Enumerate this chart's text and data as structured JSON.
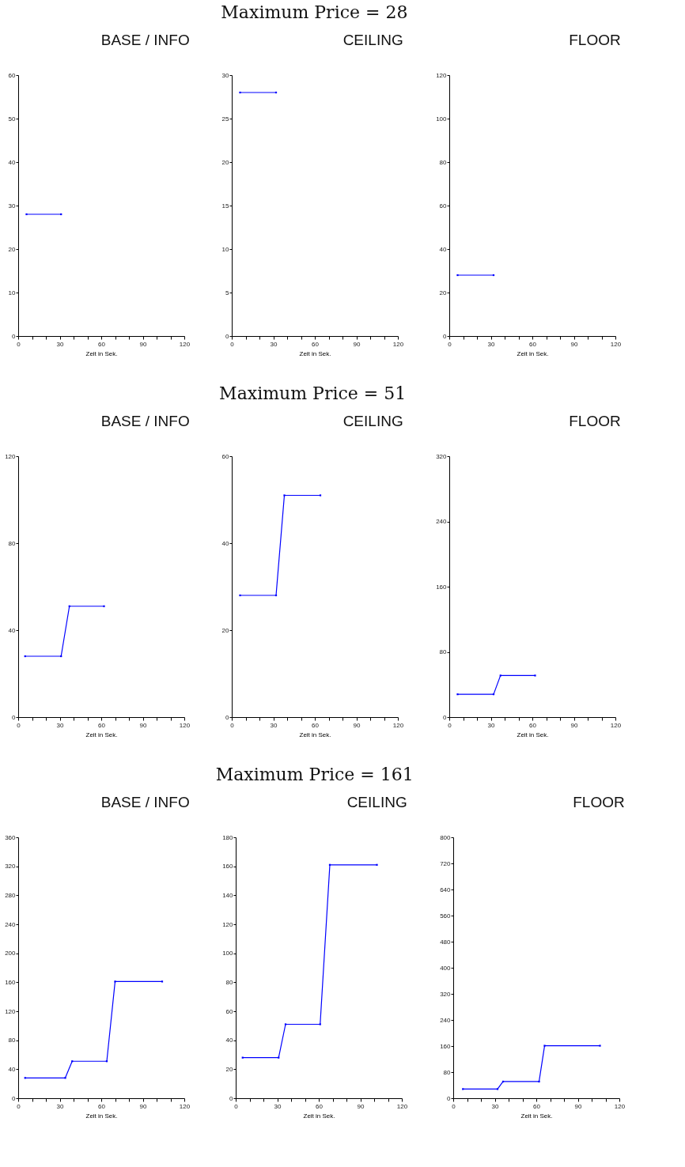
{
  "chart_data": [
    {
      "type": "line",
      "title": "BASE / INFO",
      "annotations": [
        "Maximum Price = 28"
      ],
      "xlabel": "Zeit in Sek.",
      "x": [
        6,
        31
      ],
      "series": [
        {
          "color": "#0000ff",
          "values": [
            28,
            28
          ]
        }
      ],
      "xlim": [
        0,
        120
      ],
      "xticks": [
        0,
        {
          "value": 10,
          "label": null
        },
        {
          "value": 20,
          "label": null
        },
        30,
        {
          "value": 40,
          "label": null
        },
        {
          "value": 50,
          "label": null
        },
        60,
        {
          "value": 70,
          "label": null
        },
        {
          "value": 80,
          "label": null
        },
        90,
        {
          "value": 100,
          "label": null
        },
        {
          "value": 110,
          "label": null
        },
        120
      ],
      "ylim": [
        0,
        60
      ],
      "yticks": [
        0,
        10,
        20,
        30,
        40,
        50,
        60
      ],
      "marker": "square",
      "grid": false
    },
    {
      "type": "line",
      "title": "CEILING",
      "xlabel": "Zeit in Sek.",
      "x": [
        6,
        32
      ],
      "series": [
        {
          "color": "#0000ff",
          "values": [
            28,
            28
          ]
        }
      ],
      "xlim": [
        0,
        120
      ],
      "xticks": [
        0,
        {
          "value": 10,
          "label": null
        },
        {
          "value": 20,
          "label": null
        },
        30,
        {
          "value": 40,
          "label": null
        },
        {
          "value": 50,
          "label": null
        },
        60,
        {
          "value": 70,
          "label": null
        },
        {
          "value": 80,
          "label": null
        },
        90,
        {
          "value": 100,
          "label": null
        },
        {
          "value": 110,
          "label": null
        },
        120
      ],
      "ylim": [
        0,
        30
      ],
      "yticks": [
        0,
        5,
        10,
        15,
        20,
        25,
        30
      ],
      "marker": "square",
      "grid": false
    },
    {
      "type": "line",
      "title": "FLOOR",
      "xlabel": "Zeit in Sek.",
      "x": [
        6,
        32
      ],
      "series": [
        {
          "color": "#0000ff",
          "values": [
            28,
            28
          ]
        }
      ],
      "xlim": [
        0,
        120
      ],
      "xticks": [
        0,
        {
          "value": 10,
          "label": null
        },
        {
          "value": 20,
          "label": null
        },
        30,
        {
          "value": 40,
          "label": null
        },
        {
          "value": 50,
          "label": null
        },
        60,
        {
          "value": 70,
          "label": null
        },
        {
          "value": 80,
          "label": null
        },
        90,
        {
          "value": 100,
          "label": null
        },
        {
          "value": 110,
          "label": null
        },
        120
      ],
      "ylim": [
        0,
        120
      ],
      "yticks": [
        0,
        20,
        40,
        60,
        80,
        100,
        120
      ],
      "marker": "square",
      "grid": false
    },
    {
      "type": "line",
      "title": "BASE / INFO",
      "annotations": [
        "Maximum Price = 51"
      ],
      "xlabel": "Zeit in Sek.",
      "x": [
        5,
        31,
        37,
        62
      ],
      "series": [
        {
          "color": "#0000ff",
          "values": [
            28,
            28,
            51,
            51
          ]
        }
      ],
      "xlim": [
        0,
        120
      ],
      "xticks": [
        0,
        {
          "value": 10,
          "label": null
        },
        {
          "value": 20,
          "label": null
        },
        30,
        {
          "value": 40,
          "label": null
        },
        {
          "value": 50,
          "label": null
        },
        60,
        {
          "value": 70,
          "label": null
        },
        {
          "value": 80,
          "label": null
        },
        90,
        {
          "value": 100,
          "label": null
        },
        {
          "value": 110,
          "label": null
        },
        120
      ],
      "ylim": [
        0,
        120
      ],
      "yticks": [
        0,
        40,
        80,
        120
      ],
      "marker": "square",
      "grid": false
    },
    {
      "type": "line",
      "title": "CEILING",
      "xlabel": "Zeit in Sek.",
      "x": [
        6,
        32,
        38,
        64
      ],
      "series": [
        {
          "color": "#0000ff",
          "values": [
            28,
            28,
            51,
            51
          ]
        }
      ],
      "xlim": [
        0,
        120
      ],
      "xticks": [
        0,
        {
          "value": 10,
          "label": null
        },
        {
          "value": 20,
          "label": null
        },
        30,
        {
          "value": 40,
          "label": null
        },
        {
          "value": 50,
          "label": null
        },
        60,
        {
          "value": 70,
          "label": null
        },
        {
          "value": 80,
          "label": null
        },
        90,
        {
          "value": 100,
          "label": null
        },
        {
          "value": 110,
          "label": null
        },
        120
      ],
      "ylim": [
        0,
        60
      ],
      "yticks": [
        0,
        20,
        40,
        60
      ],
      "marker": "square",
      "grid": false
    },
    {
      "type": "line",
      "title": "FLOOR",
      "xlabel": "Zeit in Sek.",
      "x": [
        6,
        32,
        37,
        62
      ],
      "series": [
        {
          "color": "#0000ff",
          "values": [
            28,
            28,
            51,
            51
          ]
        }
      ],
      "xlim": [
        0,
        120
      ],
      "xticks": [
        0,
        {
          "value": 10,
          "label": null
        },
        {
          "value": 20,
          "label": null
        },
        30,
        {
          "value": 40,
          "label": null
        },
        {
          "value": 50,
          "label": null
        },
        60,
        {
          "value": 70,
          "label": null
        },
        {
          "value": 80,
          "label": null
        },
        90,
        {
          "value": 100,
          "label": null
        },
        {
          "value": 110,
          "label": null
        },
        120
      ],
      "ylim": [
        0,
        320
      ],
      "yticks": [
        0,
        80,
        160,
        240,
        320
      ],
      "marker": "square",
      "grid": false
    },
    {
      "type": "line",
      "title": "BASE / INFO",
      "annotations": [
        "Maximum Price = 161"
      ],
      "xlabel": "Zeit in Sek.",
      "x": [
        5,
        34,
        39,
        64,
        70,
        104
      ],
      "series": [
        {
          "color": "#0000ff",
          "values": [
            28,
            28,
            51,
            51,
            161,
            161
          ]
        }
      ],
      "xlim": [
        0,
        120
      ],
      "xticks": [
        0,
        {
          "value": 10,
          "label": null
        },
        {
          "value": 20,
          "label": null
        },
        30,
        {
          "value": 40,
          "label": null
        },
        {
          "value": 50,
          "label": null
        },
        60,
        {
          "value": 70,
          "label": null
        },
        {
          "value": 80,
          "label": null
        },
        90,
        {
          "value": 100,
          "label": null
        },
        {
          "value": 110,
          "label": null
        },
        120
      ],
      "ylim": [
        0,
        360
      ],
      "yticks": [
        0,
        40,
        80,
        120,
        160,
        200,
        240,
        280,
        320,
        360
      ],
      "marker": "square",
      "grid": false
    },
    {
      "type": "line",
      "title": "CEILING",
      "xlabel": "Zeit in Sek.",
      "x": [
        5,
        31,
        36,
        61,
        68,
        102
      ],
      "series": [
        {
          "color": "#0000ff",
          "values": [
            28,
            28,
            51,
            51,
            161,
            161
          ]
        }
      ],
      "xlim": [
        0,
        120
      ],
      "xticks": [
        0,
        {
          "value": 10,
          "label": null
        },
        {
          "value": 20,
          "label": null
        },
        30,
        {
          "value": 40,
          "label": null
        },
        {
          "value": 50,
          "label": null
        },
        60,
        {
          "value": 70,
          "label": null
        },
        {
          "value": 80,
          "label": null
        },
        90,
        {
          "value": 100,
          "label": null
        },
        {
          "value": 110,
          "label": null
        },
        120
      ],
      "ylim": [
        0,
        180
      ],
      "yticks": [
        0,
        20,
        40,
        60,
        80,
        100,
        120,
        140,
        160,
        180
      ],
      "marker": "square",
      "grid": false
    },
    {
      "type": "line",
      "title": "FLOOR",
      "xlabel": "Zeit in Sek.",
      "x": [
        7,
        32,
        36,
        62,
        66,
        106
      ],
      "series": [
        {
          "color": "#0000ff",
          "values": [
            28,
            28,
            51,
            51,
            161,
            161
          ]
        }
      ],
      "xlim": [
        0,
        120
      ],
      "xticks": [
        0,
        {
          "value": 10,
          "label": null
        },
        {
          "value": 20,
          "label": null
        },
        30,
        {
          "value": 40,
          "label": null
        },
        {
          "value": 50,
          "label": null
        },
        60,
        {
          "value": 70,
          "label": null
        },
        {
          "value": 80,
          "label": null
        },
        90,
        {
          "value": 100,
          "label": null
        },
        {
          "value": 110,
          "label": null
        },
        120
      ],
      "ylim": [
        0,
        800
      ],
      "yticks": [
        0,
        80,
        160,
        240,
        320,
        400,
        480,
        560,
        640,
        720,
        800
      ],
      "marker": "square",
      "grid": false
    }
  ]
}
